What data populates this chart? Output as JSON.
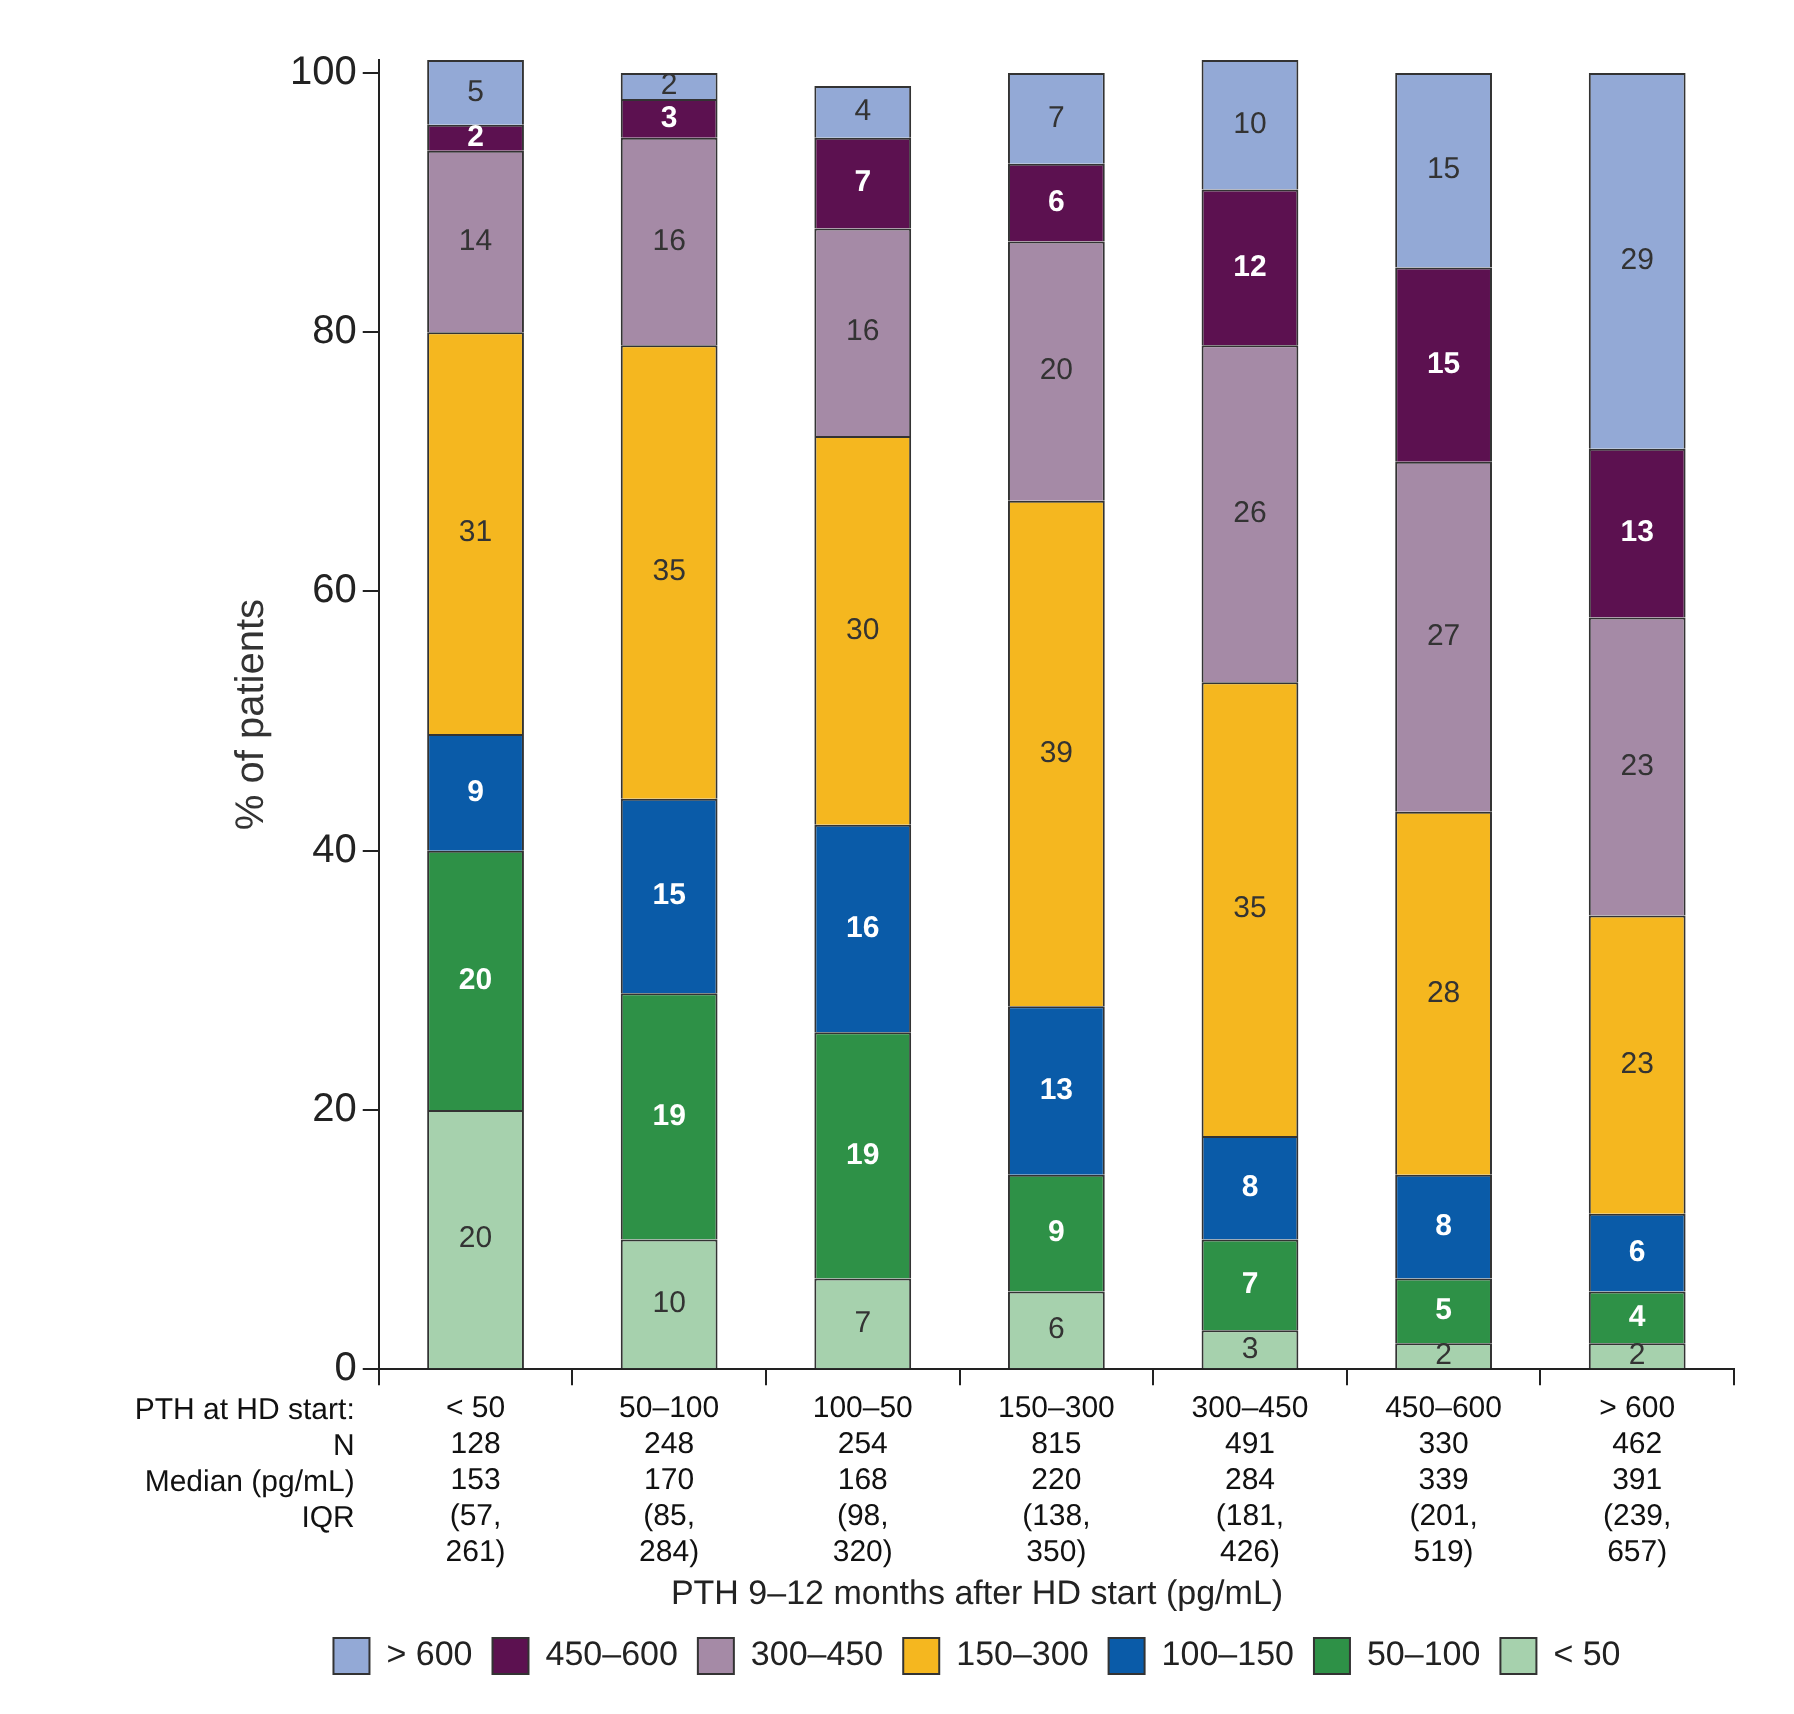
{
  "chart_data": {
    "type": "bar",
    "stacked": true,
    "ylabel": "% of patients",
    "categories": [
      "< 50\n128\n153\n(57,\n261)",
      "50–100\n248\n170\n(85,\n284)",
      "100–50\n254\n168\n(98,\n320)",
      "150–300\n815\n220\n(138,\n350)",
      "300–450\n491\n284\n(181,\n426)",
      "450–600\n330\n339\n(201,\n519)",
      "> 600\n462\n391\n(239,\n657)"
    ],
    "annotations": [
      "PTH at HD start:",
      "N",
      "Median (pg/mL)",
      "IQR"
    ],
    "legend_title": "PTH 9–12 months after HD start (pg/mL)",
    "series": [
      {
        "name": "< 50",
        "color": "#a6d1ad",
        "values": [
          20,
          10,
          7,
          6,
          3,
          2,
          2
        ]
      },
      {
        "name": "50–100",
        "color": "#2e9147",
        "values": [
          20,
          19,
          19,
          9,
          7,
          5,
          4
        ]
      },
      {
        "name": "100–150",
        "color": "#0a5ba8",
        "values": [
          9,
          15,
          16,
          13,
          8,
          8,
          6
        ]
      },
      {
        "name": "150–300",
        "color": "#f5b71f",
        "values": [
          31,
          35,
          30,
          39,
          35,
          28,
          23
        ]
      },
      {
        "name": "300–450",
        "color": "#a58aa6",
        "values": [
          14,
          16,
          16,
          20,
          26,
          27,
          23
        ]
      },
      {
        "name": "450–600",
        "color": "#5c1150",
        "values": [
          2,
          3,
          7,
          6,
          12,
          15,
          13
        ]
      },
      {
        "name": "> 600",
        "color": "#93a9d6",
        "values": [
          5,
          2,
          4,
          7,
          10,
          15,
          29
        ]
      }
    ],
    "ylim": [
      0,
      101
    ],
    "yticks": [
      0,
      20,
      40,
      60,
      80,
      100
    ],
    "grid": false,
    "legend": "bottom",
    "data_labels": true
  }
}
